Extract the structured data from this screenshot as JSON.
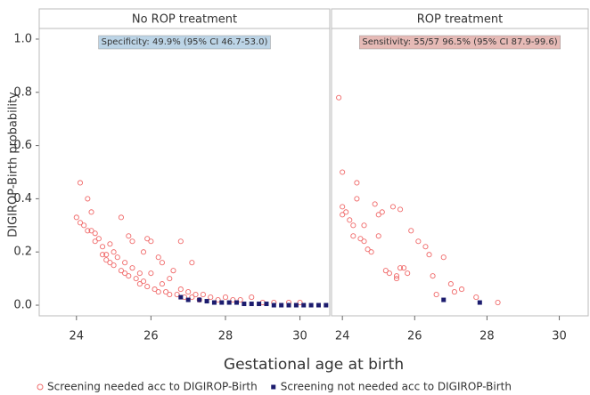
{
  "chart_data": {
    "type": "scatter",
    "y_label": "DIGIROP-Birth probability",
    "x_label": "Gestational age at birth",
    "ylim": [
      -0.04,
      1.04
    ],
    "yticks": [
      {
        "value": 0,
        "label": "0.0"
      },
      {
        "value": 0.2,
        "label": "0.2"
      },
      {
        "value": 0.4,
        "label": "0.4"
      },
      {
        "value": 0.6,
        "label": "0.6"
      },
      {
        "value": 0.8,
        "label": "0.8"
      },
      {
        "value": 1,
        "label": "1.0"
      }
    ],
    "series": [
      {
        "name": "Screening needed acc to DIGIROP-Birth",
        "color": "#f06a6a",
        "marker": "open-circle"
      },
      {
        "name": "Screening not needed acc to DIGIROP-Birth",
        "color": "#1c1c6e",
        "marker": "square"
      }
    ],
    "panels": [
      {
        "title": "No ROP treatment",
        "annotation": "Specificity: 49.9% (95% CI 46.7-53.0)",
        "annotation_color": "#bcd4e6",
        "xlim": [
          23,
          30.8
        ],
        "xticks": [
          24,
          26,
          28,
          30
        ],
        "points": [
          {
            "x": [
              24.0,
              24.1,
              24.1,
              24.2,
              24.3,
              24.3,
              24.4,
              24.4,
              24.5,
              24.5,
              24.6,
              24.7,
              24.7,
              24.8,
              24.8,
              24.9,
              24.9,
              25.0,
              25.0,
              25.1,
              25.2,
              25.2,
              25.3,
              25.3,
              25.4,
              25.4,
              25.5,
              25.5,
              25.6,
              25.7,
              25.7,
              25.8,
              25.8,
              25.9,
              25.9,
              26.0,
              26.0,
              26.1,
              26.2,
              26.2,
              26.3,
              26.3,
              26.4,
              26.5,
              26.5,
              26.6,
              26.7,
              26.8,
              26.8,
              26.9,
              27.0,
              27.1,
              27.1,
              27.2,
              27.3,
              27.4,
              27.6,
              27.8,
              28.0,
              28.2,
              28.4,
              28.7,
              29.0,
              29.3,
              29.7,
              30.0
            ],
            "values": [
              0.33,
              0.46,
              0.31,
              0.3,
              0.4,
              0.28,
              0.35,
              0.28,
              0.27,
              0.24,
              0.25,
              0.22,
              0.19,
              0.19,
              0.17,
              0.23,
              0.16,
              0.2,
              0.15,
              0.18,
              0.33,
              0.13,
              0.16,
              0.12,
              0.26,
              0.11,
              0.24,
              0.14,
              0.1,
              0.12,
              0.08,
              0.2,
              0.09,
              0.25,
              0.07,
              0.24,
              0.12,
              0.06,
              0.18,
              0.05,
              0.16,
              0.08,
              0.05,
              0.1,
              0.04,
              0.13,
              0.04,
              0.24,
              0.06,
              0.03,
              0.05,
              0.16,
              0.03,
              0.04,
              0.02,
              0.04,
              0.03,
              0.02,
              0.03,
              0.02,
              0.02,
              0.03,
              0.01,
              0.01,
              0.01,
              0.01
            ]
          },
          {
            "x": [
              26.8,
              27.0,
              27.3,
              27.5,
              27.7,
              27.9,
              28.1,
              28.3,
              28.5,
              28.7,
              28.9,
              29.1,
              29.3,
              29.5,
              29.7,
              29.9,
              30.1,
              30.3,
              30.5,
              30.7
            ],
            "values": [
              0.03,
              0.02,
              0.02,
              0.015,
              0.01,
              0.01,
              0.01,
              0.01,
              0.005,
              0.005,
              0.005,
              0.005,
              0,
              0,
              0,
              0,
              0,
              0,
              0,
              0
            ]
          }
        ]
      },
      {
        "title": "ROP treatment",
        "annotation": "Sensitivity: 55/57  96.5% (95% CI 87.9-99.6)",
        "annotation_color": "#e6bab6",
        "xlim": [
          23.7,
          30.8
        ],
        "xticks": [
          24,
          26,
          28,
          30
        ],
        "points": [
          {
            "x": [
              23.9,
              24.0,
              24.0,
              24.0,
              24.1,
              24.2,
              24.3,
              24.3,
              24.4,
              24.4,
              24.5,
              24.6,
              24.6,
              24.7,
              24.8,
              24.9,
              25.0,
              25.0,
              25.1,
              25.2,
              25.3,
              25.4,
              25.5,
              25.5,
              25.6,
              25.6,
              25.7,
              25.8,
              25.9,
              26.1,
              26.3,
              26.4,
              26.5,
              26.6,
              26.8,
              27.0,
              27.1,
              27.3,
              27.7,
              28.3
            ],
            "values": [
              0.78,
              0.5,
              0.37,
              0.34,
              0.35,
              0.32,
              0.3,
              0.26,
              0.46,
              0.4,
              0.25,
              0.24,
              0.3,
              0.21,
              0.2,
              0.38,
              0.34,
              0.26,
              0.35,
              0.13,
              0.12,
              0.37,
              0.11,
              0.1,
              0.36,
              0.14,
              0.14,
              0.12,
              0.28,
              0.24,
              0.22,
              0.19,
              0.11,
              0.04,
              0.18,
              0.08,
              0.05,
              0.06,
              0.03,
              0.01
            ]
          },
          {
            "x": [
              26.8,
              27.8
            ],
            "values": [
              0.02,
              0.01
            ]
          }
        ]
      }
    ]
  }
}
